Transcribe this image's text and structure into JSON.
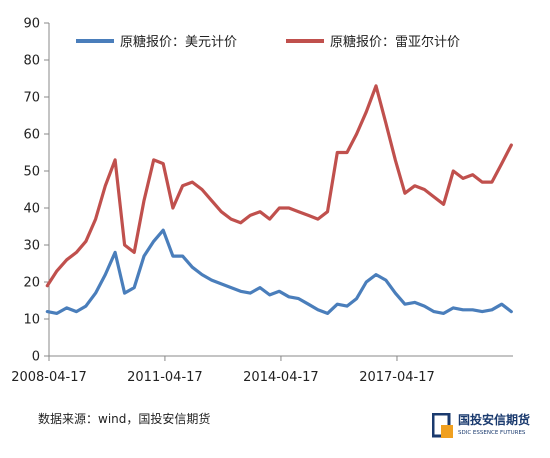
{
  "chart_data": {
    "type": "line",
    "title": "",
    "xlabel": "",
    "ylabel": "",
    "ylim": [
      0,
      90
    ],
    "yticks": [
      "0",
      "10",
      "20",
      "30",
      "40",
      "50",
      "60",
      "70",
      "80",
      "90"
    ],
    "x_range": [
      "2008-04-17",
      "2020-04-17"
    ],
    "xticks": [
      "2008-04-17",
      "2011-04-17",
      "2014-04-17",
      "2017-04-17"
    ],
    "grid": false,
    "legend_position": "top",
    "x": [
      "2008-04",
      "2008-07",
      "2008-10",
      "2009-01",
      "2009-04",
      "2009-07",
      "2009-10",
      "2010-01",
      "2010-04",
      "2010-07",
      "2010-10",
      "2011-01",
      "2011-04",
      "2011-07",
      "2011-10",
      "2012-01",
      "2012-04",
      "2012-07",
      "2012-10",
      "2013-01",
      "2013-04",
      "2013-07",
      "2013-10",
      "2014-01",
      "2014-04",
      "2014-07",
      "2014-10",
      "2015-01",
      "2015-04",
      "2015-07",
      "2015-10",
      "2016-01",
      "2016-04",
      "2016-07",
      "2016-10",
      "2017-01",
      "2017-04",
      "2017-07",
      "2017-10",
      "2018-01",
      "2018-04",
      "2018-07",
      "2018-10",
      "2019-01",
      "2019-04",
      "2019-07",
      "2019-10",
      "2020-01",
      "2020-04"
    ],
    "series": [
      {
        "name": "原糖报价：美元计价",
        "color": "#4a7ebb",
        "values": [
          12,
          11.5,
          13,
          12,
          13.5,
          17,
          22,
          28,
          17,
          18.5,
          27,
          31,
          34,
          27,
          27,
          24,
          22,
          20.5,
          19.5,
          18.5,
          17.5,
          17,
          18.5,
          16.5,
          17.5,
          16,
          15.5,
          14,
          12.5,
          11.5,
          14,
          13.5,
          15.5,
          20,
          22,
          20.5,
          17,
          14,
          14.5,
          13.5,
          12,
          11.5,
          13,
          12.5,
          12.5,
          12,
          12.5,
          14,
          12
        ]
      },
      {
        "name": "原糖报价：雷亚尔计价",
        "color": "#c0504d",
        "values": [
          19,
          23,
          26,
          28,
          31,
          37,
          46,
          53,
          30,
          28,
          42,
          53,
          52,
          40,
          46,
          47,
          45,
          42,
          39,
          37,
          36,
          38,
          39,
          37,
          40,
          40,
          39,
          38,
          37,
          39,
          55,
          55,
          60,
          66,
          73,
          63,
          53,
          44,
          46,
          45,
          43,
          41,
          50,
          48,
          49,
          47,
          47,
          52,
          57
        ]
      }
    ]
  },
  "legend": [
    {
      "label": "原糖报价：美元计价",
      "color": "#4a7ebb"
    },
    {
      "label": "原糖报价：雷亚尔计价",
      "color": "#c0504d"
    }
  ],
  "source_text": "数据来源：wind，国投安信期货",
  "logo": {
    "cn": "国投安信期货",
    "en": "SDIC ESSENCE FUTURES"
  }
}
